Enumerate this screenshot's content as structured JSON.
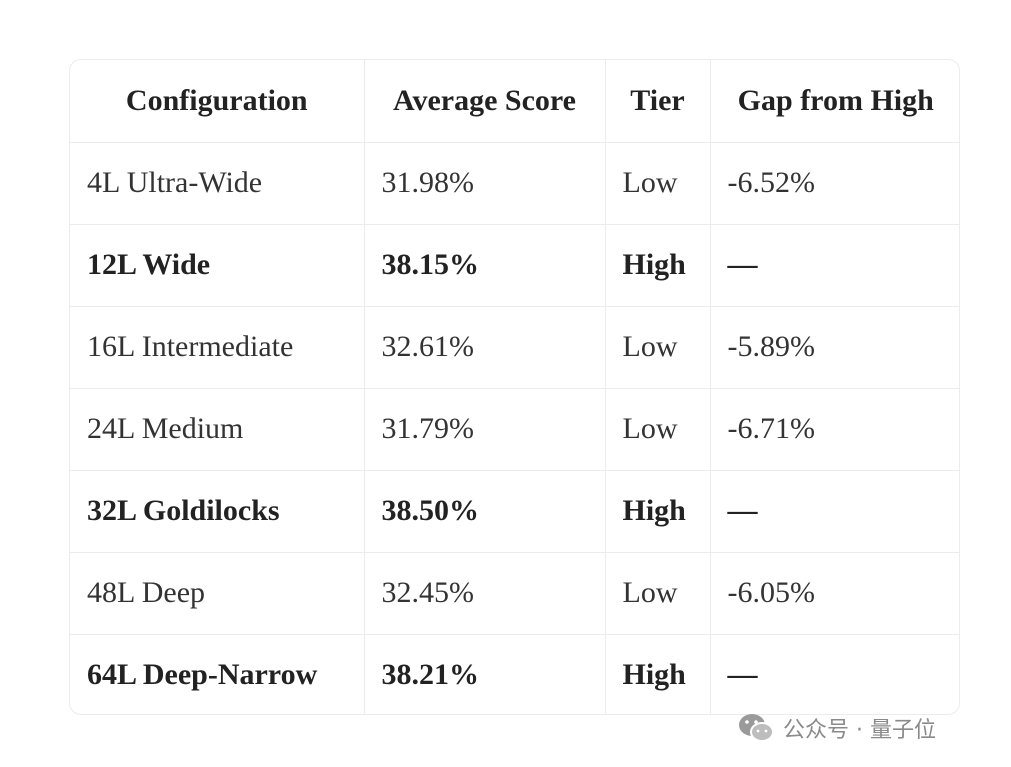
{
  "table": {
    "header": [
      "Configuration",
      "Average Score",
      "Tier",
      "Gap from High"
    ],
    "rows": [
      {
        "cells": [
          "4L Ultra-Wide",
          "31.98%",
          "Low",
          "-6.52%"
        ],
        "bold": false
      },
      {
        "cells": [
          "12L Wide",
          "38.15%",
          "High",
          "—"
        ],
        "bold": true
      },
      {
        "cells": [
          "16L Intermediate",
          "32.61%",
          "Low",
          "-5.89%"
        ],
        "bold": false
      },
      {
        "cells": [
          "24L Medium",
          "31.79%",
          "Low",
          "-6.71%"
        ],
        "bold": false
      },
      {
        "cells": [
          "32L Goldilocks",
          "38.50%",
          "High",
          "—"
        ],
        "bold": true
      },
      {
        "cells": [
          "48L Deep",
          "32.45%",
          "Low",
          "-6.05%"
        ],
        "bold": false
      },
      {
        "cells": [
          "64L Deep-Narrow",
          "38.21%",
          "High",
          "—"
        ],
        "bold": true
      }
    ]
  },
  "watermark": "公众号 · 量子位"
}
